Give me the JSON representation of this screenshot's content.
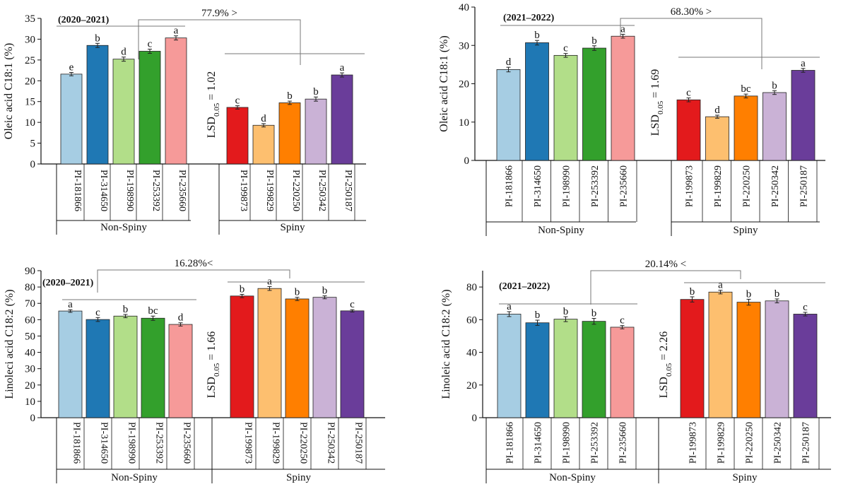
{
  "colors": {
    "PI-181866": "#a6cde3",
    "PI-314650": "#1f78b4",
    "PI-198990": "#b2de89",
    "PI-253392": "#33a02c",
    "PI-235660": "#f69a99",
    "PI-199873": "#e31a1c",
    "PI-199829": "#fdbf6f",
    "PI-220250": "#ff7f00",
    "PI-250342": "#cab2d6",
    "PI-250187": "#6a3d9a"
  },
  "chart_data": [
    {
      "id": "oleic-2020",
      "type": "bar",
      "title": "(2020–2021)",
      "ylabel": "Oleic acid C18:1 (%)",
      "ylim": [
        0,
        35
      ],
      "yticks": [
        0,
        5,
        10,
        15,
        20,
        25,
        30,
        35
      ],
      "lsd": "1.02",
      "comparison_label": "77.9% >",
      "groups": [
        {
          "name": "Non-Spiny",
          "categories": [
            "PI-181866",
            "PI-314650",
            "PI-198990",
            "PI-253392",
            "PI-235660"
          ],
          "values": [
            21.6,
            28.5,
            25.2,
            27.1,
            30.3
          ],
          "errors": [
            0.4,
            0.5,
            0.5,
            0.5,
            0.5
          ],
          "letters": [
            "e",
            "b",
            "d",
            "c",
            "a"
          ]
        },
        {
          "name": "Spiny",
          "categories": [
            "PI-199873",
            "PI-199829",
            "PI-220250",
            "PI-250342",
            "PI-250187"
          ],
          "values": [
            13.6,
            9.3,
            14.7,
            15.6,
            21.4
          ],
          "errors": [
            0.4,
            0.4,
            0.4,
            0.5,
            0.5
          ],
          "letters": [
            "c",
            "d",
            "b",
            "b",
            "a"
          ]
        }
      ]
    },
    {
      "id": "oleic-2021",
      "type": "bar",
      "title": "(2021–2022)",
      "ylabel": "Oleic acid C18:1 (%)",
      "ylim": [
        0,
        40
      ],
      "yticks": [
        0,
        10,
        20,
        30,
        40
      ],
      "lsd": "1.69",
      "comparison_label": "68.30% >",
      "groups": [
        {
          "name": "Non-Spiny",
          "categories": [
            "PI-181866",
            "PI-314650",
            "PI-198990",
            "PI-253392",
            "PI-235660"
          ],
          "values": [
            23.7,
            30.7,
            27.4,
            29.3,
            32.4
          ],
          "errors": [
            0.6,
            0.6,
            0.5,
            0.6,
            0.5
          ],
          "letters": [
            "d",
            "b",
            "c",
            "b",
            "a"
          ]
        },
        {
          "name": "Spiny",
          "categories": [
            "PI-199873",
            "PI-199829",
            "PI-220250",
            "PI-250342",
            "PI-250187"
          ],
          "values": [
            15.8,
            11.4,
            16.8,
            17.7,
            23.5
          ],
          "errors": [
            0.5,
            0.4,
            0.5,
            0.5,
            0.5
          ],
          "letters": [
            "c",
            "d",
            "bc",
            "b",
            "a"
          ]
        }
      ]
    },
    {
      "id": "linoleic-2020",
      "type": "bar",
      "title": "(2020–2021)",
      "ylabel": "Linoleci acid C18:2 (%)",
      "ylim": [
        0,
        90
      ],
      "yticks": [
        0,
        10,
        20,
        30,
        40,
        50,
        60,
        70,
        80,
        90
      ],
      "lsd": "1.66",
      "comparison_label": "16.28%<",
      "groups": [
        {
          "name": "Non-Spiny",
          "categories": [
            "PI-181866",
            "PI-314650",
            "PI-198990",
            "PI-253392",
            "PI-235660"
          ],
          "values": [
            65.3,
            60.1,
            62.2,
            60.9,
            57.1
          ],
          "errors": [
            0.8,
            1.2,
            1.0,
            1.3,
            1.0
          ],
          "letters": [
            "a",
            "c",
            "b",
            "bc",
            "d"
          ]
        },
        {
          "name": "Spiny",
          "categories": [
            "PI-199873",
            "PI-199829",
            "PI-220250",
            "PI-250342",
            "PI-250187"
          ],
          "values": [
            74.5,
            79.1,
            72.7,
            73.7,
            65.4
          ],
          "errors": [
            1.0,
            1.2,
            1.0,
            0.9,
            0.7
          ],
          "letters": [
            "b",
            "a",
            "b",
            "b",
            "c"
          ]
        }
      ]
    },
    {
      "id": "linoleic-2021",
      "type": "bar",
      "title": "(2021–2022)",
      "ylabel": "Linoleic acid C18:2 (%)",
      "ylim": [
        0,
        90
      ],
      "yticks": [
        0,
        20,
        40,
        60,
        80
      ],
      "lsd": "2.26",
      "comparison_label": "20.14% <",
      "groups": [
        {
          "name": "Non-Spiny",
          "categories": [
            "PI-181866",
            "PI-314650",
            "PI-198990",
            "PI-253392",
            "PI-235660"
          ],
          "values": [
            63.4,
            58.1,
            60.3,
            59.0,
            55.4
          ],
          "errors": [
            1.5,
            1.6,
            1.5,
            1.8,
            1.0
          ],
          "letters": [
            "a",
            "b",
            "b",
            "b",
            "c"
          ]
        },
        {
          "name": "Spiny",
          "categories": [
            "PI-199873",
            "PI-199829",
            "PI-220250",
            "PI-250342",
            "PI-250187"
          ],
          "values": [
            72.4,
            76.9,
            70.7,
            71.5,
            63.4
          ],
          "errors": [
            1.6,
            1.1,
            1.8,
            1.2,
            1.1
          ],
          "letters": [
            "b",
            "a",
            "b",
            "b",
            "c"
          ]
        }
      ]
    }
  ]
}
